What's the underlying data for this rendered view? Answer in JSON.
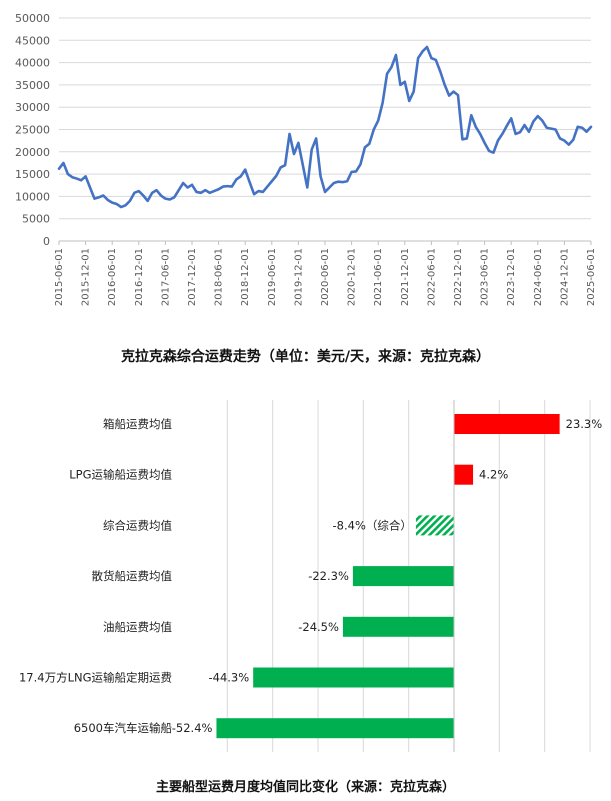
{
  "chart_data": [
    {
      "type": "line",
      "title": "克拉克森综合运费走势（单位：美元/天，来源：克拉克森）",
      "ylim": [
        0,
        50000
      ],
      "y_ticks": [
        "0",
        "5000",
        "10000",
        "15000",
        "20000",
        "25000",
        "30000",
        "35000",
        "40000",
        "45000",
        "50000"
      ],
      "x_ticks": [
        "2015-06-01",
        "2015-12-01",
        "2016-06-01",
        "2016-12-01",
        "2017-06-01",
        "2017-12-01",
        "2018-06-01",
        "2018-12-01",
        "2019-06-01",
        "2019-12-01",
        "2020-06-01",
        "2020-12-01",
        "2021-06-01",
        "2021-12-01",
        "2022-06-01",
        "2022-12-01",
        "2023-06-01",
        "2023-12-01",
        "2024-06-01",
        "2024-12-01",
        "2025-06-01"
      ],
      "line_color": "#4472c4",
      "series": [
        {
          "values": [
            16200,
            17500,
            15000,
            14300,
            14000,
            13600,
            14500,
            12000,
            9500,
            9800,
            10200,
            9200,
            8600,
            8300,
            7600,
            8000,
            9000,
            10800,
            11200,
            10200,
            9000,
            10800,
            11400,
            10200,
            9500,
            9300,
            9800,
            11400,
            13000,
            12000,
            12600,
            11000,
            10800,
            11400,
            10800,
            11200,
            11600,
            12200,
            12300,
            12200,
            13800,
            14500,
            16000,
            13200,
            10500,
            11200,
            11000,
            12200,
            13400,
            14600,
            16500,
            17000,
            24000,
            19500,
            22000,
            17000,
            12000,
            20500,
            23000,
            14500,
            11000,
            12000,
            13000,
            13300,
            13200,
            13400,
            15500,
            15600,
            17200,
            21000,
            21800,
            25000,
            27000,
            31000,
            37500,
            39000,
            41700,
            35000,
            35700,
            31400,
            33500,
            41000,
            42500,
            43500,
            41000,
            40600,
            38000,
            35000,
            32600,
            33500,
            32700,
            22800,
            23000,
            28200,
            25600,
            24000,
            22000,
            20200,
            19800,
            22500,
            24000,
            25800,
            27500,
            24000,
            24400,
            26000,
            24500,
            26800,
            28000,
            27000,
            25400,
            25200,
            25000,
            23000,
            22500,
            21600,
            22700,
            25600,
            25400,
            24500,
            25600
          ]
        }
      ]
    },
    {
      "type": "bar",
      "orientation": "horizontal",
      "title": "主要船型运费月度均值同比变化（来源：克拉克森）",
      "xlim": [
        -60,
        30
      ],
      "categories": [
        "箱船运费均值",
        "LPG运输船运费均值",
        "综合运费均值",
        "散货船运费均值",
        "油船运费均值",
        "17.4万方LNG运输船定期运费",
        "6500车汽车运输船"
      ],
      "values": [
        23.3,
        4.2,
        -8.4,
        -22.3,
        -24.5,
        -44.3,
        -52.4
      ],
      "value_labels": [
        "23.3%",
        "4.2%",
        "-8.4%（综合）",
        "-22.3%",
        "-24.5%",
        "-44.3%",
        "-52.4%"
      ],
      "colors": [
        "#ff0000",
        "#ff0000",
        "#00b050",
        "#00b050",
        "#00b050",
        "#00b050",
        "#00b050"
      ],
      "hatched": [
        false,
        false,
        true,
        false,
        false,
        false,
        false
      ]
    }
  ]
}
